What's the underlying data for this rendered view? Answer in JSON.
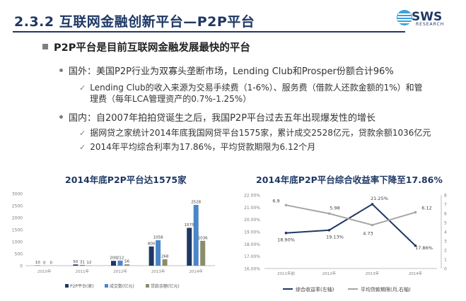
{
  "header": {
    "title": "2.3.2 互联网金融创新平台—P2P平台",
    "logo_text": "SWS",
    "logo_sub": "RESEARCH"
  },
  "bullets": {
    "main": "P2P平台是目前互联网金融发展最快的平台",
    "abroad": "国外：美国P2P行业为双寡头垄断市场，Lending Club和Prosper份额合计96%",
    "abroad_sub_line1": "Lending Club的收入来源为交易手续费（1-6%）、服务费（借款人还款金额的1%）和管",
    "abroad_sub_line2": "理费（每年LCA管理资产的0.7%-1.25%）",
    "domestic": "国内：自2007年拍拍贷诞生之后，我国P2P平台过去五年出现爆发性的增长",
    "domestic_sub1": "据网贷之家统计2014年底我国网贷平台1575家，累计成交2528亿元，贷款余额1036亿元",
    "domestic_sub2": "2014年平均综合利率为17.86%，平均贷款期限为6.12个月"
  },
  "chart_data": [
    {
      "type": "bar",
      "title": "2014年底P2P平台达1575家",
      "categories": [
        "2010年",
        "2011年",
        "2012年",
        "2013年",
        "2014年"
      ],
      "series": [
        {
          "name": "P2P平台(家)",
          "values": [
            10,
            50,
            200,
            800,
            1575
          ],
          "labels": [
            "10",
            "50",
            "200",
            "800",
            "1575"
          ]
        },
        {
          "name": "成交数(亿元)",
          "values": [
            0,
            31,
            212,
            1058,
            2528
          ],
          "labels": [
            "0",
            "31",
            "212",
            "1058",
            "2528"
          ]
        },
        {
          "name": "贷款余额(亿元)",
          "values": [
            0,
            12,
            56,
            268,
            1036
          ],
          "labels": [
            "0",
            "12",
            "56",
            "268",
            "1036"
          ]
        }
      ],
      "ylim": [
        0,
        3000
      ],
      "yticks": [
        "0",
        "500",
        "1000",
        "1500",
        "2000",
        "2500",
        "3000"
      ],
      "colors": [
        "#1f3864",
        "#4a86c8",
        "#8c8c6a"
      ]
    },
    {
      "type": "line",
      "title": "2014年底P2P平台综合收益率下降至17.86%",
      "categories": [
        "2011年前",
        "2012年",
        "2013年",
        "2014年"
      ],
      "series": [
        {
          "name": "综合收益率(左轴)",
          "values": [
            18.9,
            19.13,
            21.25,
            17.86
          ],
          "labels": [
            "18.90%",
            "19.13%",
            "21.25%",
            "17.86%"
          ],
          "axis": "left",
          "color": "#1f3864"
        },
        {
          "name": "平均贷款期限(月,右轴)",
          "values": [
            6.9,
            5.98,
            4.73,
            6.12
          ],
          "labels": [
            "6.9",
            "5.98",
            "4.73",
            "6.12"
          ],
          "axis": "right",
          "color": "#a6a6a6"
        }
      ],
      "ylim_left": [
        16,
        22
      ],
      "yticks_left": [
        "16.00%",
        "17.00%",
        "18.00%",
        "19.00%",
        "20.00%",
        "21.00%",
        "22.00%"
      ],
      "ylim_right": [
        0,
        8
      ],
      "yticks_right": [
        "0",
        "1",
        "2",
        "3",
        "4",
        "5",
        "6",
        "7",
        "8"
      ]
    }
  ]
}
